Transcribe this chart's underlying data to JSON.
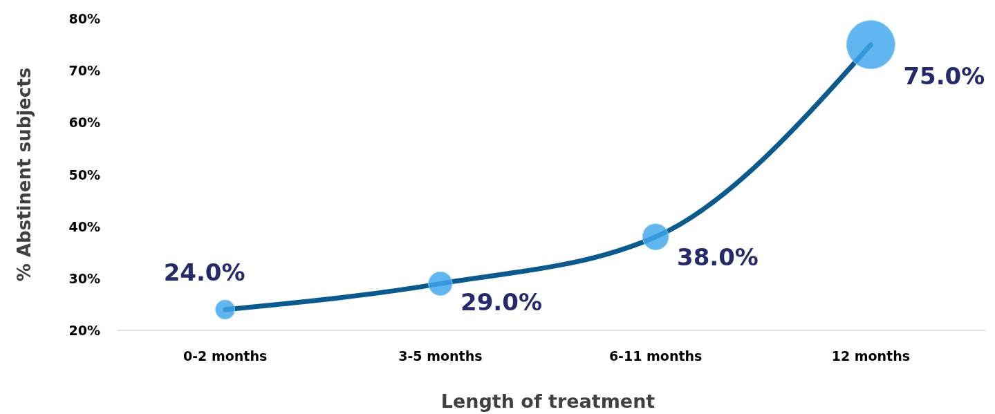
{
  "chart_data": {
    "type": "line",
    "xlabel": "Length of treatment",
    "ylabel": "% Abstinent subjects",
    "categories": [
      "0-2 months",
      "3-5 months",
      "6-11 months",
      "12 months"
    ],
    "series": [
      {
        "color": "#0b5a8e",
        "values": [
          24.0,
          29.0,
          38.0,
          75.0
        ]
      },
      {
        "type": "bubble",
        "color": "#3ea6ec",
        "values": [
          24.0,
          29.0,
          38.0,
          75.0
        ],
        "sizes": [
          0.16,
          0.24,
          0.29,
          1
        ],
        "value_labels": [
          "24.0%",
          "29.0%",
          "38.0%",
          "75.0%"
        ]
      }
    ],
    "ylim": [
      20,
      80
    ],
    "yticks": [
      {
        "value": 20,
        "label": "20%"
      },
      {
        "value": 30,
        "label": "30%"
      },
      {
        "value": 40,
        "label": "40%"
      },
      {
        "value": 50,
        "label": "50%"
      },
      {
        "value": 60,
        "label": "60%"
      },
      {
        "value": 70,
        "label": "70%"
      },
      {
        "value": 80,
        "label": "80%"
      }
    ],
    "grid": false,
    "line_style": "solid"
  }
}
